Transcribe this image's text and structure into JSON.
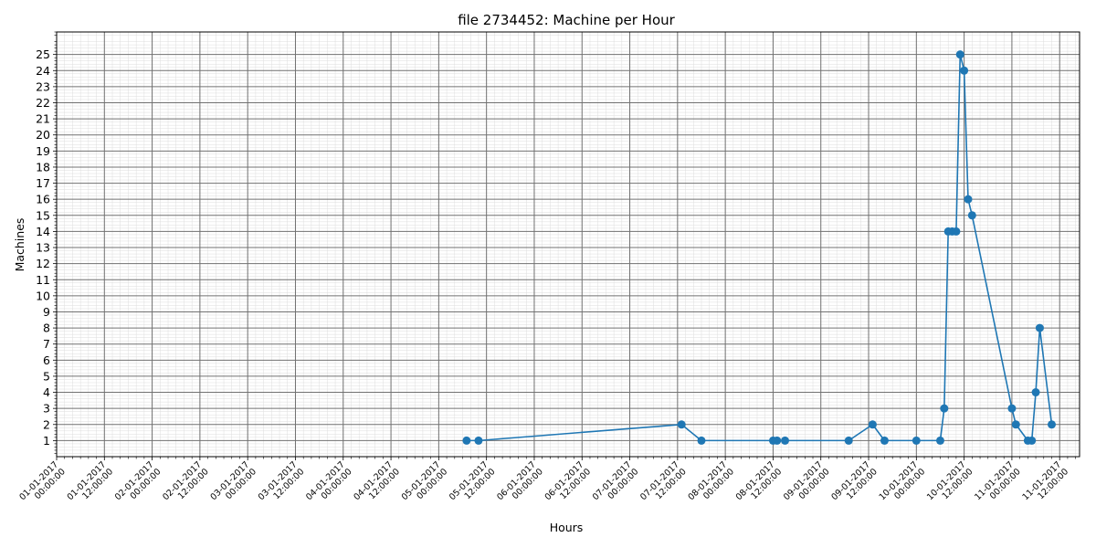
{
  "chart_data": {
    "type": "line",
    "title": "file 2734452: Machine per Hour",
    "xlabel": "Hours",
    "ylabel": "Machines",
    "x_ticks": [
      {
        "line1": "01-01-2017",
        "line2": "00:00:00",
        "day": 0
      },
      {
        "line1": "01-01-2017",
        "line2": "12:00:00",
        "day": 0.5
      },
      {
        "line1": "02-01-2017",
        "line2": "00:00:00",
        "day": 1
      },
      {
        "line1": "02-01-2017",
        "line2": "12:00:00",
        "day": 1.5
      },
      {
        "line1": "03-01-2017",
        "line2": "00:00:00",
        "day": 2
      },
      {
        "line1": "03-01-2017",
        "line2": "12:00:00",
        "day": 2.5
      },
      {
        "line1": "04-01-2017",
        "line2": "00:00:00",
        "day": 3
      },
      {
        "line1": "04-01-2017",
        "line2": "12:00:00",
        "day": 3.5
      },
      {
        "line1": "05-01-2017",
        "line2": "00:00:00",
        "day": 4
      },
      {
        "line1": "05-01-2017",
        "line2": "12:00:00",
        "day": 4.5
      },
      {
        "line1": "06-01-2017",
        "line2": "00:00:00",
        "day": 5
      },
      {
        "line1": "06-01-2017",
        "line2": "12:00:00",
        "day": 5.5
      },
      {
        "line1": "07-01-2017",
        "line2": "00:00:00",
        "day": 6
      },
      {
        "line1": "07-01-2017",
        "line2": "12:00:00",
        "day": 6.5
      },
      {
        "line1": "08-01-2017",
        "line2": "00:00:00",
        "day": 7
      },
      {
        "line1": "08-01-2017",
        "line2": "12:00:00",
        "day": 7.5
      },
      {
        "line1": "09-01-2017",
        "line2": "00:00:00",
        "day": 8
      },
      {
        "line1": "09-01-2017",
        "line2": "12:00:00",
        "day": 8.5
      },
      {
        "line1": "10-01-2017",
        "line2": "00:00:00",
        "day": 9
      },
      {
        "line1": "10-01-2017",
        "line2": "12:00:00",
        "day": 9.5
      },
      {
        "line1": "11-01-2017",
        "line2": "00:00:00",
        "day": 10
      },
      {
        "line1": "11-01-2017",
        "line2": "12:00:00",
        "day": 10.5
      }
    ],
    "y_ticks": [
      1,
      2,
      3,
      4,
      5,
      6,
      7,
      8,
      9,
      10,
      11,
      12,
      13,
      14,
      15,
      16,
      17,
      18,
      19,
      20,
      21,
      22,
      23,
      24,
      25
    ],
    "xlim": [
      "01-01-2017 00:00:00",
      "11-01-2017 17:00:00"
    ],
    "ylim": [
      0,
      26.4
    ],
    "grid": true,
    "series": [
      {
        "color": "#1f77b4",
        "points": [
          {
            "x": "05-01-2017 07:00:00",
            "y": 1
          },
          {
            "x": "05-01-2017 10:00:00",
            "y": 1
          },
          {
            "x": "07-01-2017 13:00:00",
            "y": 2
          },
          {
            "x": "07-01-2017 18:00:00",
            "y": 1
          },
          {
            "x": "08-01-2017 12:00:00",
            "y": 1
          },
          {
            "x": "08-01-2017 13:00:00",
            "y": 1
          },
          {
            "x": "08-01-2017 15:00:00",
            "y": 1
          },
          {
            "x": "09-01-2017 07:00:00",
            "y": 1
          },
          {
            "x": "09-01-2017 13:00:00",
            "y": 2
          },
          {
            "x": "09-01-2017 16:00:00",
            "y": 1
          },
          {
            "x": "10-01-2017 00:00:00",
            "y": 1
          },
          {
            "x": "10-01-2017 06:00:00",
            "y": 1
          },
          {
            "x": "10-01-2017 07:00:00",
            "y": 3
          },
          {
            "x": "10-01-2017 08:00:00",
            "y": 14
          },
          {
            "x": "10-01-2017 09:00:00",
            "y": 14
          },
          {
            "x": "10-01-2017 10:00:00",
            "y": 14
          },
          {
            "x": "10-01-2017 11:00:00",
            "y": 25
          },
          {
            "x": "10-01-2017 12:00:00",
            "y": 24
          },
          {
            "x": "10-01-2017 13:00:00",
            "y": 16
          },
          {
            "x": "10-01-2017 14:00:00",
            "y": 15
          },
          {
            "x": "11-01-2017 00:00:00",
            "y": 3
          },
          {
            "x": "11-01-2017 01:00:00",
            "y": 2
          },
          {
            "x": "11-01-2017 04:00:00",
            "y": 1
          },
          {
            "x": "11-01-2017 05:00:00",
            "y": 1
          },
          {
            "x": "11-01-2017 06:00:00",
            "y": 4
          },
          {
            "x": "11-01-2017 07:00:00",
            "y": 8
          },
          {
            "x": "11-01-2017 10:00:00",
            "y": 2
          }
        ]
      }
    ]
  }
}
